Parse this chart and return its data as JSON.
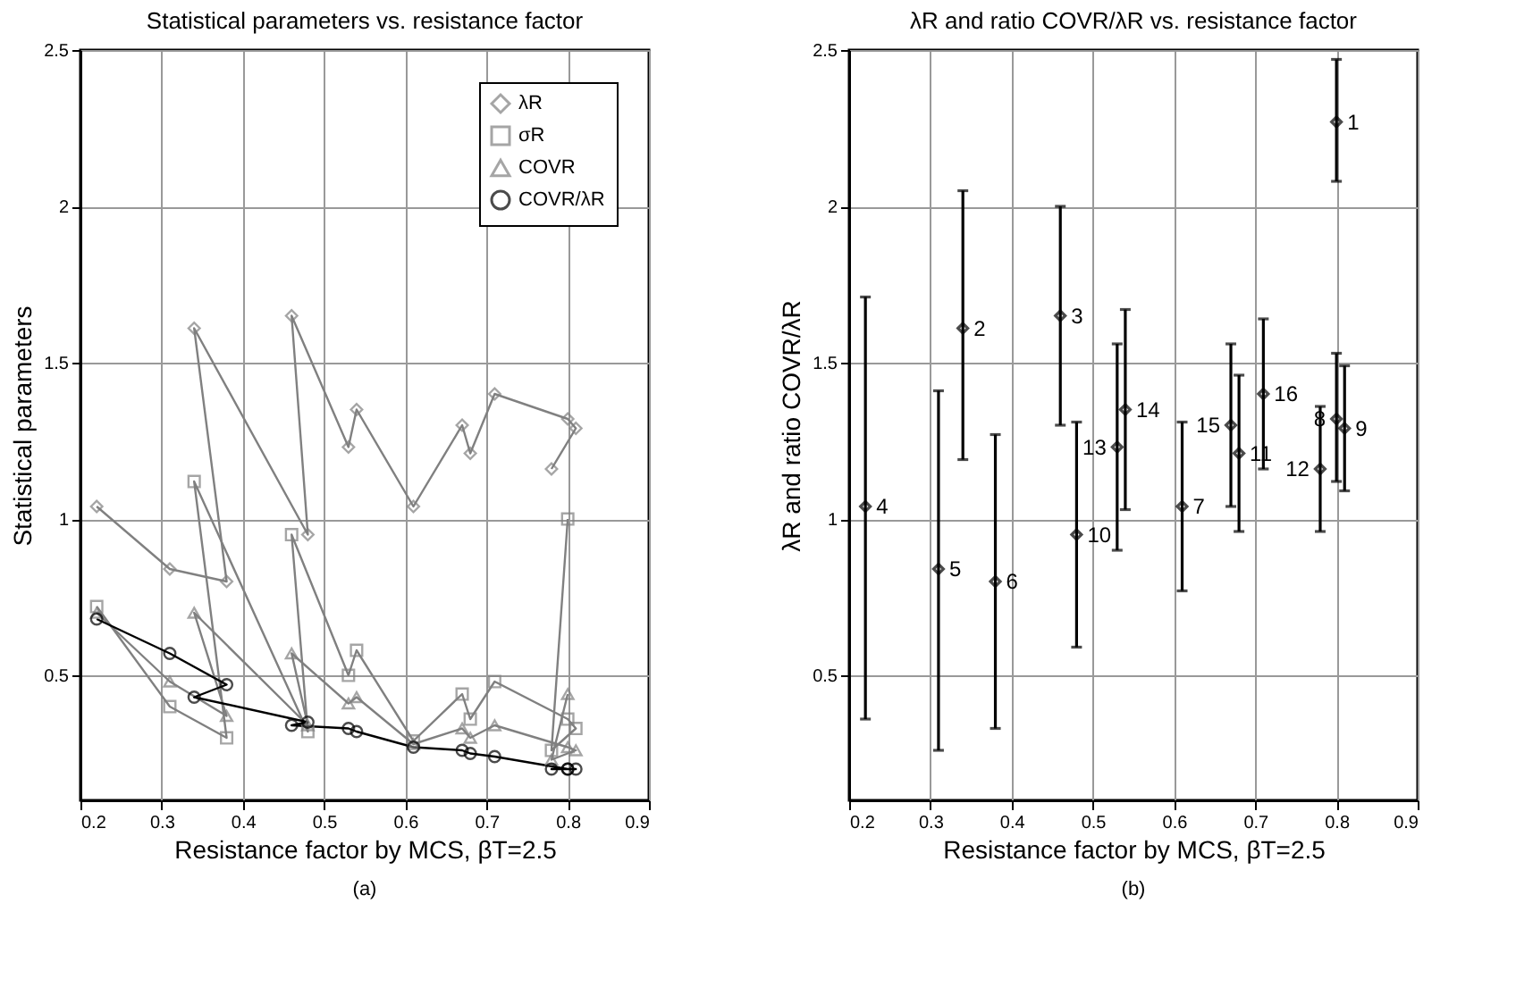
{
  "chart_data": [
    {
      "type": "line",
      "title": "Statistical parameters vs. resistance factor",
      "xlabel": "Resistance factor by MCS, βT=2.5",
      "ylabel": "Statistical parameters",
      "xlim": [
        0.2,
        0.9
      ],
      "xticks": [
        0.2,
        0.3,
        0.4,
        0.5,
        0.6,
        0.7,
        0.8,
        0.9
      ],
      "ylim": [
        0.1,
        2.5
      ],
      "yticks": [
        0.5,
        1,
        1.5,
        2,
        2.5
      ],
      "grid": true,
      "legend": "top right",
      "annotations": [
        "(a)"
      ],
      "series": [
        {
          "name": "λR",
          "color": "#808080",
          "marker": "diamond",
          "x": [
            0.22,
            0.31,
            0.38,
            0.34,
            0.48,
            0.46,
            0.53,
            0.54,
            0.61,
            0.67,
            0.68,
            0.71,
            0.8,
            0.81,
            0.78
          ],
          "values": [
            1.04,
            0.84,
            0.8,
            1.61,
            0.95,
            1.65,
            1.23,
            1.35,
            1.04,
            1.3,
            1.21,
            1.4,
            1.32,
            1.29,
            1.16
          ]
        },
        {
          "name": "σR",
          "color": "#808080",
          "marker": "square",
          "x": [
            0.22,
            0.31,
            0.38,
            0.34,
            0.48,
            0.46,
            0.53,
            0.54,
            0.61,
            0.67,
            0.68,
            0.71,
            0.8,
            0.81,
            0.78,
            0.8
          ],
          "values": [
            0.72,
            0.4,
            0.3,
            1.12,
            0.32,
            0.95,
            0.5,
            0.58,
            0.29,
            0.44,
            0.36,
            0.48,
            0.36,
            0.33,
            0.26,
            1.0
          ]
        },
        {
          "name": "COVR",
          "color": "#808080",
          "marker": "triangle",
          "x": [
            0.22,
            0.31,
            0.38,
            0.34,
            0.48,
            0.46,
            0.53,
            0.54,
            0.61,
            0.67,
            0.68,
            0.71,
            0.8,
            0.81,
            0.78,
            0.8
          ],
          "values": [
            0.7,
            0.48,
            0.37,
            0.7,
            0.34,
            0.57,
            0.41,
            0.43,
            0.28,
            0.33,
            0.3,
            0.34,
            0.27,
            0.26,
            0.23,
            0.44
          ]
        },
        {
          "name": "COVR/λR",
          "color": "#000000",
          "marker": "circle",
          "x": [
            0.22,
            0.31,
            0.38,
            0.34,
            0.48,
            0.46,
            0.53,
            0.54,
            0.61,
            0.67,
            0.68,
            0.71,
            0.8,
            0.81,
            0.78,
            0.8
          ],
          "values": [
            0.68,
            0.57,
            0.47,
            0.43,
            0.35,
            0.34,
            0.33,
            0.32,
            0.27,
            0.26,
            0.25,
            0.24,
            0.2,
            0.2,
            0.2,
            0.2
          ]
        }
      ]
    },
    {
      "type": "scatter",
      "title": "λR and ratio COVR/λR vs. resistance factor",
      "xlabel": "Resistance factor by MCS, βT=2.5",
      "ylabel": "λR and ratio COVR/λR",
      "xlim": [
        0.2,
        0.9
      ],
      "xticks": [
        0.2,
        0.3,
        0.4,
        0.5,
        0.6,
        0.7,
        0.8,
        0.9
      ],
      "ylim": [
        0.1,
        2.5
      ],
      "yticks": [
        0.5,
        1,
        1.5,
        2,
        2.5
      ],
      "grid": true,
      "marker": "diamond",
      "x": [
        0.8,
        0.34,
        0.46,
        0.22,
        0.31,
        0.38,
        0.61,
        0.8,
        0.81,
        0.48,
        0.68,
        0.78,
        0.53,
        0.54,
        0.67,
        0.71
      ],
      "series": [
        {
          "color": "#000000",
          "values": [
            2.27,
            1.61,
            1.65,
            1.04,
            0.84,
            0.8,
            1.04,
            1.32,
            1.29,
            0.95,
            1.21,
            1.16,
            1.23,
            1.35,
            1.3,
            1.4
          ],
          "errors": [
            [
              2.08,
              2.47
            ],
            [
              1.19,
              2.05
            ],
            [
              1.3,
              2.0
            ],
            [
              0.36,
              1.71
            ],
            [
              0.26,
              1.41
            ],
            [
              0.33,
              1.27
            ],
            [
              0.77,
              1.31
            ],
            [
              1.12,
              1.53
            ],
            [
              1.09,
              1.49
            ],
            [
              0.59,
              1.31
            ],
            [
              0.96,
              1.46
            ],
            [
              0.96,
              1.36
            ],
            [
              0.9,
              1.56
            ],
            [
              1.03,
              1.67
            ],
            [
              1.04,
              1.56
            ],
            [
              1.16,
              1.64
            ]
          ]
        }
      ],
      "annotations": [
        {
          "text": "1",
          "x": 0.8,
          "y": 2.27
        },
        {
          "text": "2",
          "x": 0.34,
          "y": 1.61
        },
        {
          "text": "3",
          "x": 0.46,
          "y": 1.65
        },
        {
          "text": "4",
          "x": 0.22,
          "y": 1.04
        },
        {
          "text": "5",
          "x": 0.31,
          "y": 0.84
        },
        {
          "text": "6",
          "x": 0.38,
          "y": 0.8
        },
        {
          "text": "7",
          "x": 0.61,
          "y": 1.04
        },
        {
          "text": "8",
          "x": 0.8,
          "y": 1.32
        },
        {
          "text": "9",
          "x": 0.81,
          "y": 1.29
        },
        {
          "text": "10",
          "x": 0.48,
          "y": 0.95
        },
        {
          "text": "11",
          "x": 0.68,
          "y": 1.21
        },
        {
          "text": "12",
          "x": 0.78,
          "y": 1.16
        },
        {
          "text": "13",
          "x": 0.53,
          "y": 1.23
        },
        {
          "text": "14",
          "x": 0.54,
          "y": 1.35
        },
        {
          "text": "15",
          "x": 0.67,
          "y": 1.3
        },
        {
          "text": "16",
          "x": 0.71,
          "y": 1.4
        },
        "(b)"
      ]
    }
  ]
}
